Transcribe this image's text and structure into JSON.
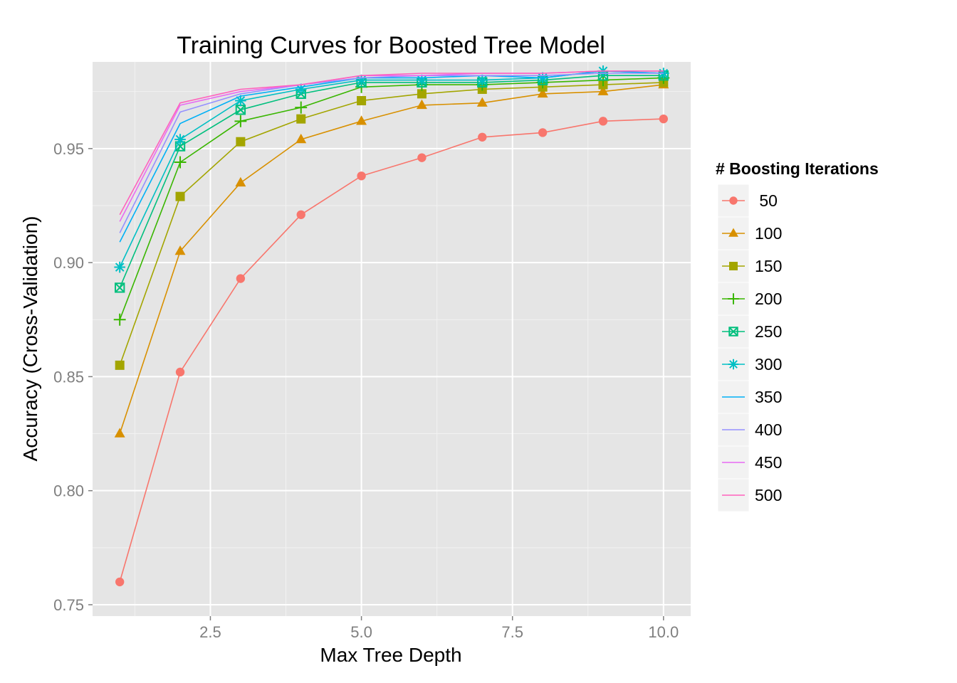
{
  "chart_data": {
    "type": "line",
    "title": "Training Curves for Boosted Tree Model",
    "xlabel": "Max Tree Depth",
    "ylabel": "Accuracy (Cross-Validation)",
    "xlim": [
      0.55,
      10.45
    ],
    "ylim": [
      0.745,
      0.988
    ],
    "x_ticks": [
      2.5,
      5.0,
      7.5,
      10.0
    ],
    "x_tick_labels": [
      "2.5",
      "5.0",
      "7.5",
      "10.0"
    ],
    "y_ticks": [
      0.75,
      0.8,
      0.85,
      0.9,
      0.95
    ],
    "y_tick_labels": [
      "0.75",
      "0.80",
      "0.85",
      "0.90",
      "0.95"
    ],
    "grid": true,
    "background": "#e5e5e5",
    "legend_title": "# Boosting Iterations",
    "legend_position": "right",
    "x": [
      1,
      2,
      3,
      4,
      5,
      6,
      7,
      8,
      9,
      10
    ],
    "series": [
      {
        "name": " 50",
        "color": "#F8766D",
        "marker": "circle",
        "values": [
          0.76,
          0.852,
          0.893,
          0.921,
          0.938,
          0.946,
          0.955,
          0.957,
          0.962,
          0.963
        ]
      },
      {
        "name": "100",
        "color": "#D89000",
        "marker": "triangle",
        "values": [
          0.825,
          0.905,
          0.935,
          0.954,
          0.962,
          0.969,
          0.97,
          0.974,
          0.975,
          0.978
        ]
      },
      {
        "name": "150",
        "color": "#A3A500",
        "marker": "square",
        "values": [
          0.855,
          0.929,
          0.953,
          0.963,
          0.971,
          0.974,
          0.976,
          0.977,
          0.978,
          0.979
        ]
      },
      {
        "name": "200",
        "color": "#39B600",
        "marker": "plus",
        "values": [
          0.875,
          0.944,
          0.962,
          0.968,
          0.977,
          0.978,
          0.978,
          0.979,
          0.98,
          0.981
        ]
      },
      {
        "name": "250",
        "color": "#00BF7D",
        "marker": "squarecross",
        "values": [
          0.889,
          0.951,
          0.967,
          0.974,
          0.979,
          0.979,
          0.979,
          0.98,
          0.982,
          0.982
        ]
      },
      {
        "name": "300",
        "color": "#00BFC4",
        "marker": "star",
        "values": [
          0.898,
          0.954,
          0.971,
          0.976,
          0.98,
          0.98,
          0.98,
          0.981,
          0.984,
          0.983
        ]
      },
      {
        "name": "350",
        "color": "#00B0F6",
        "marker": "none",
        "values": [
          0.909,
          0.961,
          0.973,
          0.977,
          0.981,
          0.981,
          0.982,
          0.981,
          0.984,
          0.983
        ]
      },
      {
        "name": "400",
        "color": "#9590FF",
        "marker": "none",
        "values": [
          0.913,
          0.966,
          0.974,
          0.978,
          0.981,
          0.982,
          0.982,
          0.982,
          0.983,
          0.983
        ]
      },
      {
        "name": "450",
        "color": "#E76BF3",
        "marker": "none",
        "values": [
          0.918,
          0.969,
          0.975,
          0.978,
          0.982,
          0.982,
          0.983,
          0.983,
          0.984,
          0.984
        ]
      },
      {
        "name": "500",
        "color": "#FF62BC",
        "marker": "none",
        "values": [
          0.921,
          0.97,
          0.976,
          0.978,
          0.982,
          0.983,
          0.983,
          0.983,
          0.984,
          0.984
        ]
      }
    ]
  }
}
